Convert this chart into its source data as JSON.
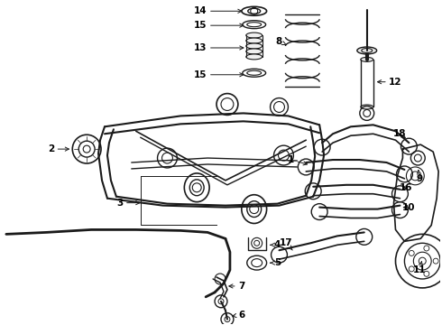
{
  "bg_color": "#ffffff",
  "line_color": "#1a1a1a",
  "label_color": "#000000",
  "figsize": [
    4.9,
    3.6
  ],
  "dpi": 100,
  "gray": "#888888",
  "lgray": "#cccccc"
}
